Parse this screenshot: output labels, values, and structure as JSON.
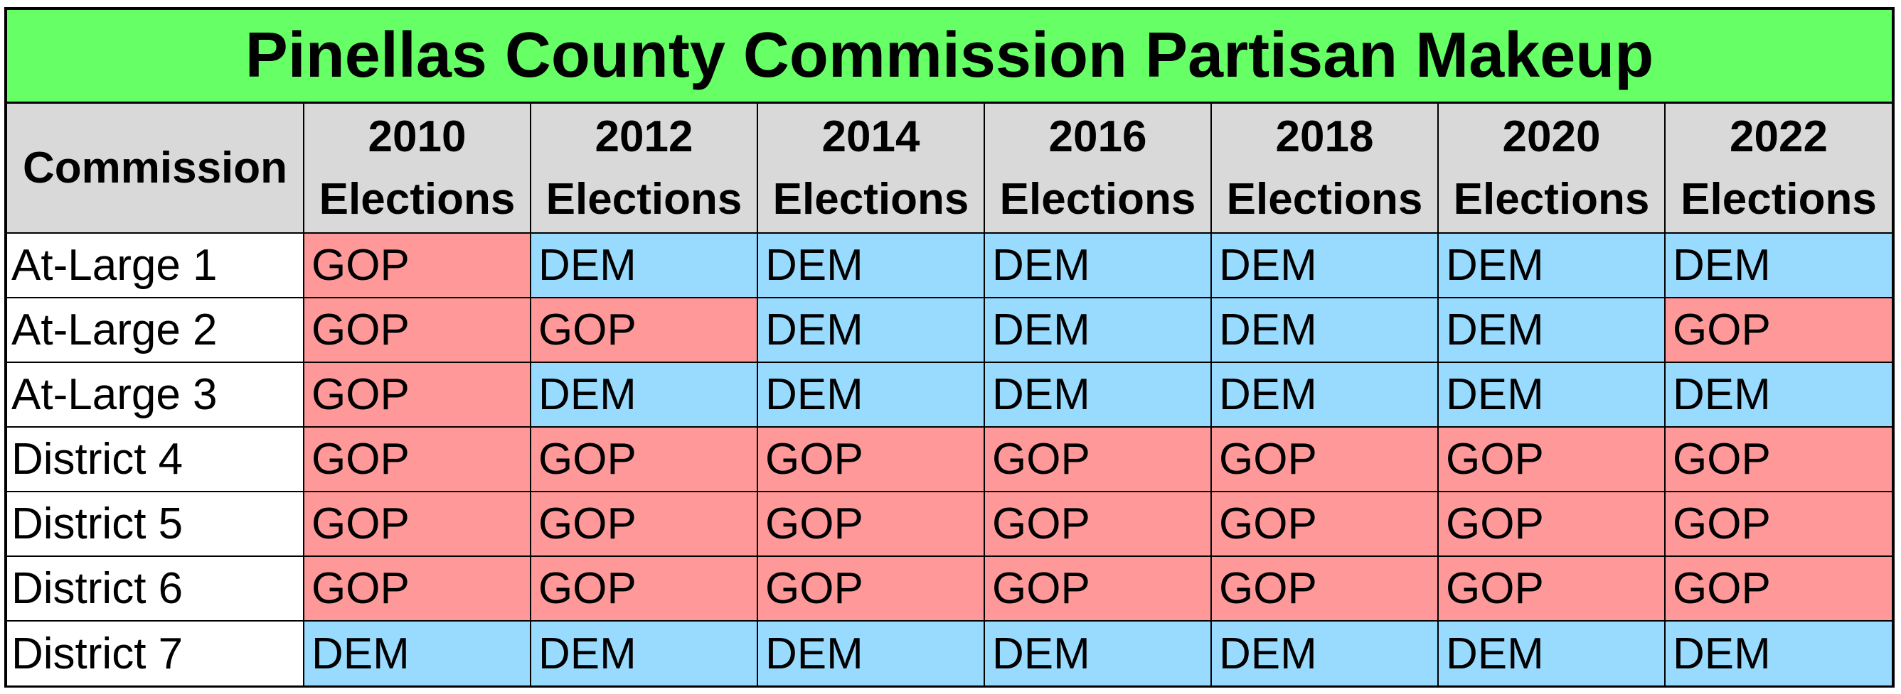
{
  "chart_data": {
    "type": "table",
    "title": "Pinellas County Commission Partisan Makeup",
    "row_header": "Commission",
    "columns": [
      {
        "year": "2010",
        "label": "Elections"
      },
      {
        "year": "2012",
        "label": "Elections"
      },
      {
        "year": "2014",
        "label": "Elections"
      },
      {
        "year": "2016",
        "label": "Elections"
      },
      {
        "year": "2018",
        "label": "Elections"
      },
      {
        "year": "2020",
        "label": "Elections"
      },
      {
        "year": "2022",
        "label": "Elections"
      }
    ],
    "rows": [
      {
        "seat": "At-Large 1",
        "values": [
          "GOP",
          "DEM",
          "DEM",
          "DEM",
          "DEM",
          "DEM",
          "DEM"
        ]
      },
      {
        "seat": "At-Large 2",
        "values": [
          "GOP",
          "GOP",
          "DEM",
          "DEM",
          "DEM",
          "DEM",
          "GOP"
        ]
      },
      {
        "seat": "At-Large 3",
        "values": [
          "GOP",
          "DEM",
          "DEM",
          "DEM",
          "DEM",
          "DEM",
          "DEM"
        ]
      },
      {
        "seat": "District 4",
        "values": [
          "GOP",
          "GOP",
          "GOP",
          "GOP",
          "GOP",
          "GOP",
          "GOP"
        ]
      },
      {
        "seat": "District 5",
        "values": [
          "GOP",
          "GOP",
          "GOP",
          "GOP",
          "GOP",
          "GOP",
          "GOP"
        ]
      },
      {
        "seat": "District 6",
        "values": [
          "GOP",
          "GOP",
          "GOP",
          "GOP",
          "GOP",
          "GOP",
          "GOP"
        ]
      },
      {
        "seat": "District 7",
        "values": [
          "DEM",
          "DEM",
          "DEM",
          "DEM",
          "DEM",
          "DEM",
          "DEM"
        ]
      }
    ],
    "party_colors": {
      "GOP": "#ff9999",
      "DEM": "#99dbff"
    },
    "title_color": "#66ff66",
    "header_color": "#d9d9d9"
  }
}
